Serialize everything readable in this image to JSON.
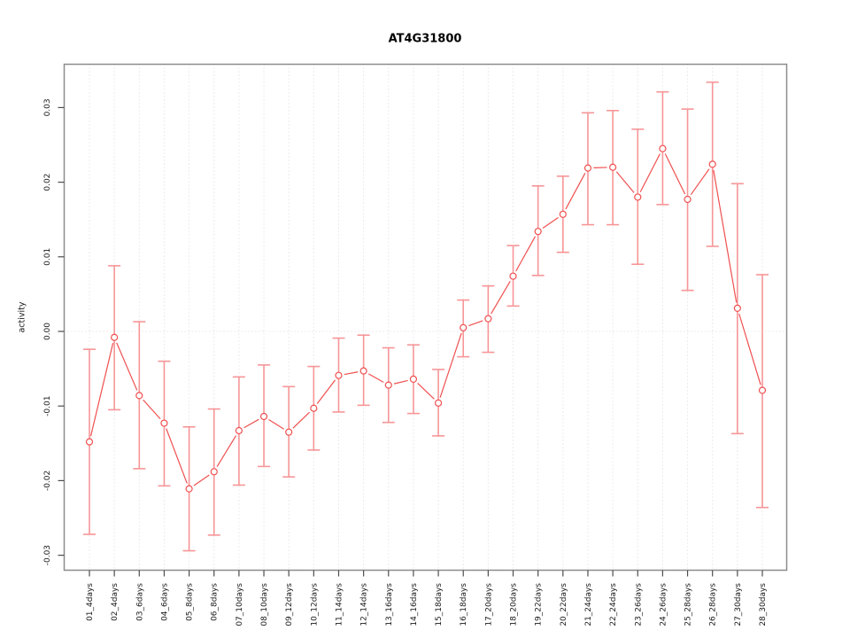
{
  "figure": {
    "title": "AT4G31800"
  },
  "chart_data": {
    "type": "line",
    "title": "AT4G31800",
    "xlabel": "",
    "ylabel": "activity",
    "legend": "none",
    "marker": "open-circle",
    "error_bars": true,
    "grid": {
      "vertical": "dotted-per-category",
      "horizontal": "dotted-zero-line-only"
    },
    "ylim": [
      -0.032,
      0.0358
    ],
    "yticks": [
      0.03,
      0.02,
      0.01,
      0.0,
      -0.01,
      -0.02,
      -0.03
    ],
    "categories": [
      "01_4days",
      "02_4days",
      "03_6days",
      "04_6days",
      "05_8days",
      "06_8days",
      "07_10days",
      "08_10days",
      "09_12days",
      "10_12days",
      "11_14days",
      "12_14days",
      "13_16days",
      "14_16days",
      "15_18days",
      "16_18days",
      "17_20days",
      "18_20days",
      "19_22days",
      "20_22days",
      "21_24days",
      "22_24days",
      "23_26days",
      "24_26days",
      "25_28days",
      "26_28days",
      "27_30days",
      "28_30days"
    ],
    "series": [
      {
        "name": "activity",
        "values": [
          -0.0148,
          -0.0008,
          -0.0086,
          -0.0123,
          -0.0211,
          -0.0188,
          -0.0133,
          -0.0114,
          -0.0135,
          -0.0103,
          -0.0059,
          -0.0053,
          -0.0072,
          -0.0064,
          -0.0096,
          0.0005,
          0.0017,
          0.0074,
          0.0134,
          0.0157,
          0.0219,
          0.022,
          0.018,
          0.0245,
          0.0177,
          0.0224,
          0.0031,
          -0.0079
        ],
        "err_low": [
          -0.0272,
          -0.0105,
          -0.0184,
          -0.0207,
          -0.0294,
          -0.0273,
          -0.0206,
          -0.0181,
          -0.0195,
          -0.0159,
          -0.0108,
          -0.0099,
          -0.0122,
          -0.011,
          -0.014,
          -0.0034,
          -0.0028,
          0.0034,
          0.0075,
          0.0106,
          0.0143,
          0.0143,
          0.009,
          0.017,
          0.0055,
          0.0114,
          -0.0137,
          -0.0236
        ],
        "err_high": [
          -0.0024,
          0.0088,
          0.0013,
          -0.004,
          -0.0128,
          -0.0104,
          -0.0061,
          -0.0045,
          -0.0074,
          -0.0047,
          -0.0009,
          -0.0005,
          -0.0022,
          -0.0018,
          -0.0051,
          0.0042,
          0.0061,
          0.0115,
          0.0195,
          0.0208,
          0.0293,
          0.0296,
          0.0271,
          0.0321,
          0.0298,
          0.0334,
          0.0198,
          0.0076
        ]
      }
    ],
    "colors": {
      "series": "#f04f4f",
      "error_bars": "#f79597",
      "grid": "#d9d9d9",
      "box": "#8c8c8c",
      "tick": "#4d4d4d",
      "text": "#1a1a1a"
    }
  }
}
